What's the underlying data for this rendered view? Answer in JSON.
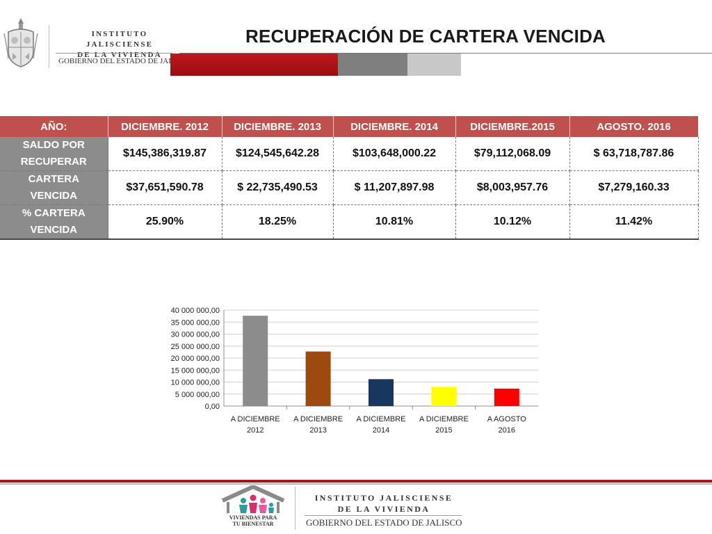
{
  "header": {
    "institution_line1": "INSTITUTO JALISCIENSE",
    "institution_line2": "DE LA VIVIENDA",
    "government": "GOBIERNO DEL ESTADO DE JALISCO",
    "title": "RECUPERACIÓN DE CARTERA VENCIDA",
    "accent_colors": [
      "#c0181b",
      "#7f7f7f",
      "#c8c8c8"
    ]
  },
  "table": {
    "headers": [
      "AÑO:",
      "DICIEMBRE. 2012",
      "DICIEMBRE. 2013",
      "DICIEMBRE. 2014",
      "DICIEMBRE.2015",
      "AGOSTO. 2016"
    ],
    "rows": [
      {
        "label_line1": "SALDO POR",
        "label_line2": "RECUPERAR",
        "cells": [
          "$145,386,319.87",
          "$124,545,642.28",
          "$103,648,000.22",
          "$79,112,068.09",
          "$ 63,718,787.86"
        ]
      },
      {
        "label_line1": "CARTERA",
        "label_line2": "VENCIDA",
        "cells": [
          "$37,651,590.78",
          "$ 22,735,490.53",
          "$ 11,207,897.98",
          "$8,003,957.76",
          "$7,279,160.33"
        ]
      },
      {
        "label_line1": "% CARTERA",
        "label_line2": "VENCIDA",
        "cells": [
          "25.90%",
          "18.25%",
          "10.81%",
          "10.12%",
          "11.42%"
        ]
      }
    ],
    "header_color": "#c0504d",
    "label_color": "#8c8c8c"
  },
  "chart_data": {
    "type": "bar",
    "categories": [
      [
        "A DICIEMBRE",
        "2012"
      ],
      [
        "A DICIEMBRE",
        "2013"
      ],
      [
        "A DICIEMBRE",
        "2014"
      ],
      [
        "A DICIEMBRE",
        "2015"
      ],
      [
        "A AGOSTO",
        "2016"
      ]
    ],
    "values": [
      37651590.78,
      22735490.53,
      11207897.98,
      8003957.76,
      7279160.33
    ],
    "bar_colors": [
      "#8c8c8c",
      "#9c4a10",
      "#17375e",
      "#ffff00",
      "#ff0000"
    ],
    "ylim": [
      0,
      40000000
    ],
    "yticks": [
      0,
      5000000,
      10000000,
      15000000,
      20000000,
      25000000,
      30000000,
      35000000,
      40000000
    ],
    "ytick_labels": [
      "0,00",
      "5 000 000,00",
      "10 000 000,00",
      "15 000 000,00",
      "20 000 000,00",
      "25 000 000,00",
      "30 000 000,00",
      "35 000 000,00",
      "40 000 000,00"
    ],
    "title": "",
    "xlabel": "",
    "ylabel": "",
    "grid": true,
    "legend": "none"
  },
  "footer": {
    "logo_caption_line1": "VIVIENDAS PARA",
    "logo_caption_line2": "TU BIENESTAR",
    "institution_line1": "INSTITUTO JALISCIENSE",
    "institution_line2": "DE LA VIVIENDA",
    "government": "GOBIERNO DEL ESTADO DE JALISCO",
    "stripe_color": "#a4161a"
  }
}
